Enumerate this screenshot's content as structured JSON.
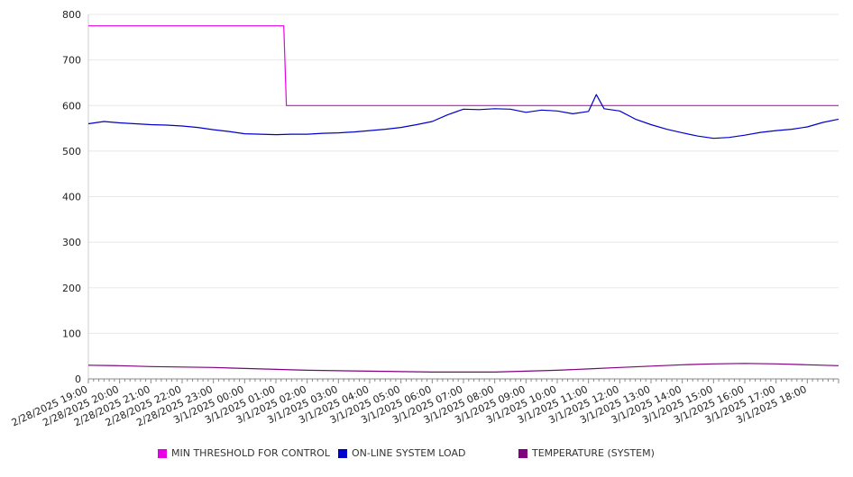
{
  "chart_data": {
    "type": "line",
    "title": "",
    "xlabel": "",
    "ylabel": "",
    "ylim": [
      0,
      800
    ],
    "yticks": [
      "0",
      "100",
      "200",
      "300",
      "400",
      "500",
      "600",
      "700",
      "800"
    ],
    "xtick_labels": [
      "2/28/2025 19:00",
      "2/28/2025 20:00",
      "2/28/2025 21:00",
      "2/28/2025 22:00",
      "2/28/2025 23:00",
      "3/1/2025 00:00",
      "3/1/2025 01:00",
      "3/1/2025 02:00",
      "3/1/2025 03:00",
      "3/1/2025 04:00",
      "3/1/2025 05:00",
      "3/1/2025 06:00",
      "3/1/2025 07:00",
      "3/1/2025 08:00",
      "3/1/2025 09:00",
      "3/1/2025 10:00",
      "3/1/2025 11:00",
      "3/1/2025 12:00",
      "3/1/2025 13:00",
      "3/1/2025 14:00",
      "3/1/2025 15:00",
      "3/1/2025 16:00",
      "3/1/2025 17:00",
      "3/1/2025 18:00"
    ],
    "xlim": [
      "2/28/2025 19:00",
      "3/1/2025 19:00"
    ],
    "grid": true,
    "legend_position": "bottom",
    "series": [
      {
        "name": "MIN THRESHOLD FOR CONTROL",
        "color": "#e600e6",
        "x": [
          "2/28/2025 19:00",
          "3/1/2025 01:15",
          "3/1/2025 01:20",
          "3/1/2025 19:00"
        ],
        "values": [
          775,
          775,
          600,
          600
        ]
      },
      {
        "name": "ON-LINE SYSTEM LOAD",
        "color": "#0000cc",
        "x": [
          "2/28/2025 19:00",
          "2/28/2025 19:30",
          "2/28/2025 20:00",
          "2/28/2025 20:30",
          "2/28/2025 21:00",
          "2/28/2025 21:30",
          "2/28/2025 22:00",
          "2/28/2025 22:30",
          "2/28/2025 23:00",
          "2/28/2025 23:30",
          "3/1/2025 00:00",
          "3/1/2025 00:30",
          "3/1/2025 01:00",
          "3/1/2025 01:30",
          "3/1/2025 02:00",
          "3/1/2025 02:30",
          "3/1/2025 03:00",
          "3/1/2025 03:30",
          "3/1/2025 04:00",
          "3/1/2025 04:30",
          "3/1/2025 05:00",
          "3/1/2025 05:30",
          "3/1/2025 06:00",
          "3/1/2025 06:30",
          "3/1/2025 07:00",
          "3/1/2025 07:30",
          "3/1/2025 08:00",
          "3/1/2025 08:30",
          "3/1/2025 09:00",
          "3/1/2025 09:30",
          "3/1/2025 10:00",
          "3/1/2025 10:30",
          "3/1/2025 11:00",
          "3/1/2025 11:15",
          "3/1/2025 11:30",
          "3/1/2025 12:00",
          "3/1/2025 12:30",
          "3/1/2025 13:00",
          "3/1/2025 13:30",
          "3/1/2025 14:00",
          "3/1/2025 14:30",
          "3/1/2025 15:00",
          "3/1/2025 15:30",
          "3/1/2025 16:00",
          "3/1/2025 16:30",
          "3/1/2025 17:00",
          "3/1/2025 17:30",
          "3/1/2025 18:00",
          "3/1/2025 18:30",
          "3/1/2025 19:00"
        ],
        "values": [
          560,
          565,
          562,
          560,
          558,
          557,
          555,
          552,
          547,
          543,
          538,
          537,
          536,
          537,
          537,
          539,
          540,
          542,
          545,
          548,
          552,
          558,
          565,
          580,
          592,
          591,
          593,
          592,
          585,
          590,
          588,
          582,
          587,
          624,
          593,
          588,
          570,
          558,
          548,
          540,
          533,
          528,
          530,
          535,
          541,
          545,
          548,
          553,
          563,
          570
        ]
      },
      {
        "name": "TEMPERATURE (SYSTEM)",
        "color": "#800080",
        "x": [
          "2/28/2025 19:00",
          "2/28/2025 20:00",
          "2/28/2025 21:00",
          "2/28/2025 22:00",
          "2/28/2025 23:00",
          "3/1/2025 00:00",
          "3/1/2025 01:00",
          "3/1/2025 02:00",
          "3/1/2025 03:00",
          "3/1/2025 04:00",
          "3/1/2025 05:00",
          "3/1/2025 06:00",
          "3/1/2025 07:00",
          "3/1/2025 08:00",
          "3/1/2025 09:00",
          "3/1/2025 10:00",
          "3/1/2025 11:00",
          "3/1/2025 12:00",
          "3/1/2025 13:00",
          "3/1/2025 14:00",
          "3/1/2025 15:00",
          "3/1/2025 16:00",
          "3/1/2025 17:00",
          "3/1/2025 18:00",
          "3/1/2025 19:00"
        ],
        "values": [
          30,
          29,
          27,
          26,
          25,
          23,
          21,
          19,
          18,
          17,
          16,
          15,
          15,
          15,
          17,
          19,
          22,
          25,
          28,
          31,
          33,
          34,
          33,
          31,
          29
        ]
      }
    ]
  }
}
